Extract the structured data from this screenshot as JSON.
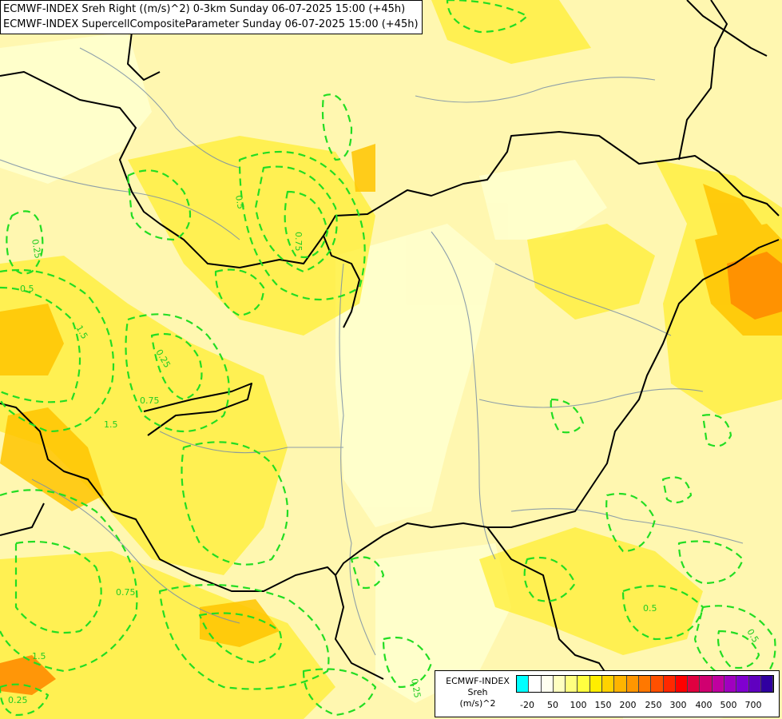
{
  "title": {
    "line1": "ECMWF-INDEX Sreh Right ((m/s)^2) 0-3km Sunday 06-07-2025 15:00 (+45h)",
    "line2": "ECMWF-INDEX SupercellCompositeParameter Sunday 06-07-2025 15:00 (+45h)"
  },
  "legend": {
    "title1": "ECMWF-INDEX",
    "title2": "Sreh",
    "title3": "(m/s)^2",
    "ticks": [
      "-20",
      "50",
      "100",
      "150",
      "200",
      "250",
      "300",
      "400",
      "500",
      "700"
    ],
    "colors": [
      "#00ffff",
      "#ffffff",
      "#fffff0",
      "#ffffc0",
      "#ffff80",
      "#ffff40",
      "#ffee00",
      "#ffd200",
      "#ffb400",
      "#ff9600",
      "#ff7800",
      "#ff5000",
      "#ff2800",
      "#ff0000",
      "#e00040",
      "#d00070",
      "#c000a0",
      "#a000c0",
      "#8000d0",
      "#6000c0",
      "#3000a0"
    ]
  },
  "contour_labels": [
    "0.25",
    "0.5",
    "0.5",
    "0.75",
    "0.75",
    "1.5",
    "0.25",
    "0.5",
    "1.5",
    "0.75",
    "0.5",
    "0.25",
    "0.25",
    "1.5"
  ],
  "colors": {
    "background": "#fff7b0",
    "contour": "#22dd22",
    "border": "#000000",
    "river": "#7a8fa6"
  }
}
